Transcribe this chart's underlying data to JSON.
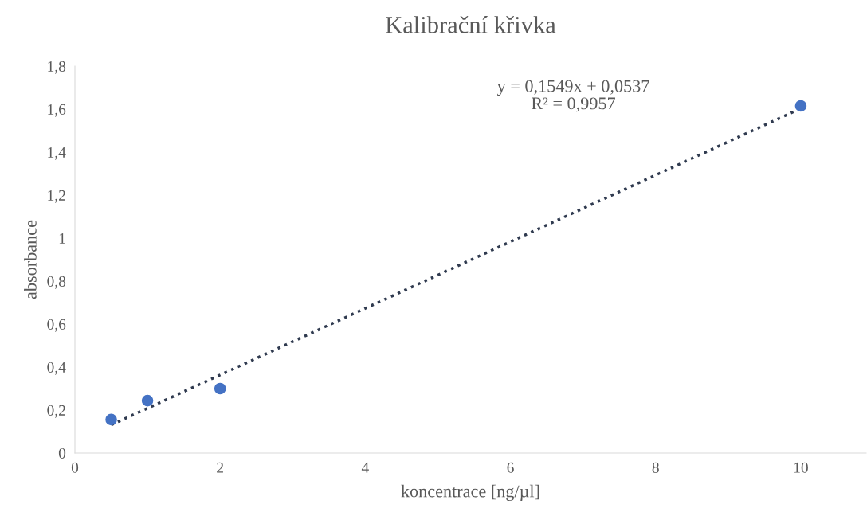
{
  "chart_data": {
    "type": "scatter",
    "title": "Kalibrační křivka",
    "xlabel": "koncentrace [ng/µl]",
    "ylabel": "absorbance",
    "series": [
      {
        "color": "#4472c4",
        "x": [
          0.5,
          1,
          2,
          10
        ],
        "values": [
          0.156,
          0.244,
          0.3,
          1.615
        ],
        "marker": "circle"
      },
      {
        "type": "line",
        "color": "#2f3a4f",
        "x": [
          0.5,
          10
        ],
        "values": [
          0.131,
          1.603
        ],
        "line_style": "dotted",
        "marker": "none"
      }
    ],
    "annotations": [
      "y = 0,1549x + 0,0537\nR² = 0,9957"
    ],
    "xlim": [
      0,
      10.9
    ],
    "xticks": [
      0,
      2,
      4,
      6,
      8,
      10
    ],
    "ylim": [
      0,
      1.8
    ],
    "yticks": [
      {
        "value": 0,
        "label": "0"
      },
      {
        "value": 0.2,
        "label": "0,2"
      },
      {
        "value": 0.4,
        "label": "0,4"
      },
      {
        "value": 0.6,
        "label": "0,6"
      },
      {
        "value": 0.8,
        "label": "0,8"
      },
      {
        "value": 1,
        "label": "1"
      },
      {
        "value": 1.2,
        "label": "1,2"
      },
      {
        "value": 1.4,
        "label": "1,4"
      },
      {
        "value": 1.6,
        "label": "1,6"
      },
      {
        "value": 1.8,
        "label": "1,8"
      }
    ],
    "grid": false,
    "legend": false
  }
}
